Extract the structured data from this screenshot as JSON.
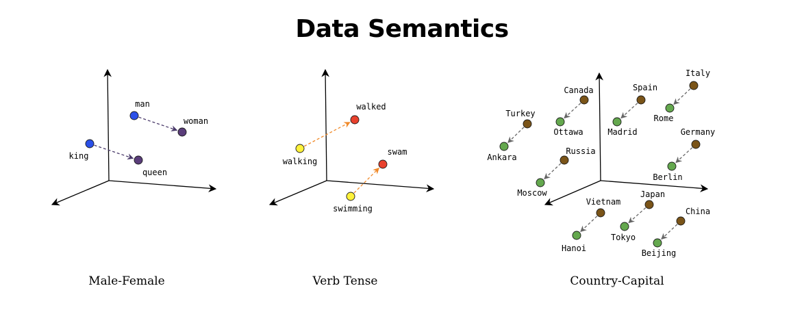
{
  "title": "Data Semantics",
  "colors": {
    "blue": "#2b50e8",
    "purple": "#5a3d7a",
    "yellow": "#fff23a",
    "red": "#e8412d",
    "brown": "#7a5418",
    "green": "#64a84e",
    "arrow_purple": "#4a3a6a",
    "arrow_orange": "#f08a2a",
    "arrow_gray": "#666666"
  },
  "panels": [
    {
      "id": "male-female",
      "caption": "Male-Female",
      "pairs": [
        {
          "from": "man",
          "to": "woman"
        },
        {
          "from": "king",
          "to": "queen"
        }
      ]
    },
    {
      "id": "verb-tense",
      "caption": "Verb Tense",
      "pairs": [
        {
          "from": "walking",
          "to": "walked"
        },
        {
          "from": "swimming",
          "to": "swam"
        }
      ]
    },
    {
      "id": "country-capital",
      "caption": "Country-Capital",
      "pairs": [
        {
          "from": "Turkey",
          "to": "Ankara"
        },
        {
          "from": "Canada",
          "to": "Ottawa"
        },
        {
          "from": "Spain",
          "to": "Madrid"
        },
        {
          "from": "Italy",
          "to": "Rome"
        },
        {
          "from": "Germany",
          "to": "Berlin"
        },
        {
          "from": "Russia",
          "to": "Moscow"
        },
        {
          "from": "Vietnam",
          "to": "Hanoi"
        },
        {
          "from": "Japan",
          "to": "Tokyo"
        },
        {
          "from": "China",
          "to": "Beijing"
        }
      ]
    }
  ]
}
